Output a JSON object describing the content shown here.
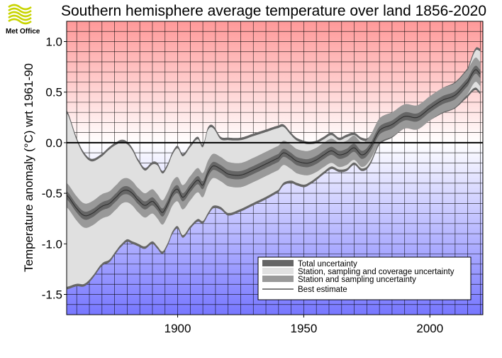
{
  "logo": {
    "text": "Met Office",
    "color": "#c8d400"
  },
  "chart_data": {
    "type": "area",
    "title": "Southern hemisphere average temperature over land 1856-2020",
    "xlabel": "",
    "ylabel": "Temperature anomaly (°C) wrt 1961-90",
    "xlim": [
      1856,
      2021
    ],
    "ylim": [
      -1.7,
      1.2
    ],
    "x_major_ticks": [
      1900,
      1950,
      2000
    ],
    "x_tick_labels": [
      "1900",
      "1950",
      "2000"
    ],
    "x_grid_step": 5,
    "y_ticks": [
      -1.5,
      -1.0,
      -0.5,
      0.0,
      0.5,
      1.0
    ],
    "y_tick_labels": [
      "-1.5",
      "-1.0",
      "-0.5",
      "0.0",
      "0.5",
      "1.0"
    ],
    "y_grid_step": 0.1,
    "zero_line": 0.0,
    "background_gradient": {
      "top": "#ff9999",
      "zero": "#ffffff",
      "bottom": "#7777ff"
    },
    "colors": {
      "total_uncertainty": "#666666",
      "coverage_uncertainty": "#e0e0e0",
      "station_uncertainty": "#999999",
      "best_estimate": "#303030"
    },
    "legend": {
      "position": "lower-right",
      "entries": [
        {
          "key": "total_uncertainty",
          "label": "Total uncertainty"
        },
        {
          "key": "coverage_uncertainty",
          "label": "Station, sampling and coverage uncertainty"
        },
        {
          "key": "station_uncertainty",
          "label": "Station and sampling uncertainty"
        },
        {
          "key": "best_estimate",
          "label": "Best estimate"
        }
      ]
    },
    "series": {
      "years": [
        1856,
        1860,
        1863,
        1866,
        1870,
        1873,
        1876,
        1878,
        1880,
        1882,
        1884,
        1887,
        1890,
        1892,
        1894,
        1896,
        1898,
        1900,
        1902,
        1905,
        1908,
        1910,
        1912,
        1914,
        1917,
        1920,
        1925,
        1930,
        1935,
        1940,
        1942,
        1945,
        1947,
        1950,
        1952,
        1955,
        1958,
        1961,
        1964,
        1967,
        1970,
        1973,
        1976,
        1980,
        1985,
        1990,
        1995,
        2000,
        2005,
        2010,
        2015,
        2018,
        2020
      ],
      "best": [
        -0.52,
        -0.65,
        -0.72,
        -0.7,
        -0.63,
        -0.6,
        -0.53,
        -0.48,
        -0.47,
        -0.5,
        -0.56,
        -0.62,
        -0.58,
        -0.63,
        -0.69,
        -0.61,
        -0.5,
        -0.46,
        -0.54,
        -0.45,
        -0.37,
        -0.42,
        -0.3,
        -0.23,
        -0.26,
        -0.31,
        -0.32,
        -0.27,
        -0.21,
        -0.15,
        -0.1,
        -0.14,
        -0.18,
        -0.2,
        -0.2,
        -0.17,
        -0.12,
        -0.08,
        -0.12,
        -0.1,
        -0.05,
        -0.12,
        -0.06,
        0.12,
        0.18,
        0.26,
        0.25,
        0.34,
        0.42,
        0.47,
        0.6,
        0.72,
        0.68
      ],
      "total_upper": [
        0.32,
        0.05,
        -0.1,
        -0.16,
        -0.11,
        -0.04,
        0.01,
        0.03,
        0.01,
        -0.05,
        -0.15,
        -0.25,
        -0.19,
        -0.2,
        -0.28,
        -0.21,
        -0.09,
        -0.03,
        -0.11,
        -0.02,
        0.06,
        -0.02,
        0.15,
        0.17,
        0.06,
        0.05,
        0.05,
        0.09,
        0.13,
        0.17,
        0.18,
        0.1,
        0.05,
        0.02,
        0.01,
        0.02,
        0.06,
        0.1,
        0.05,
        0.08,
        0.1,
        0.05,
        0.06,
        0.24,
        0.3,
        0.36,
        0.35,
        0.44,
        0.54,
        0.6,
        0.74,
        0.93,
        0.93
      ],
      "total_lower": [
        -1.45,
        -1.42,
        -1.42,
        -1.35,
        -1.22,
        -1.18,
        -1.08,
        -1.02,
        -0.98,
        -1.0,
        -1.02,
        -1.05,
        -1.0,
        -1.05,
        -1.1,
        -1.02,
        -0.9,
        -0.85,
        -0.94,
        -0.85,
        -0.78,
        -0.8,
        -0.72,
        -0.65,
        -0.66,
        -0.72,
        -0.68,
        -0.62,
        -0.56,
        -0.49,
        -0.42,
        -0.4,
        -0.42,
        -0.44,
        -0.42,
        -0.37,
        -0.31,
        -0.26,
        -0.29,
        -0.28,
        -0.22,
        -0.28,
        -0.23,
        -0.02,
        0.05,
        0.14,
        0.14,
        0.22,
        0.29,
        0.34,
        0.45,
        0.52,
        0.48
      ],
      "total_half": 0.025,
      "station_half": 0.12
    }
  }
}
